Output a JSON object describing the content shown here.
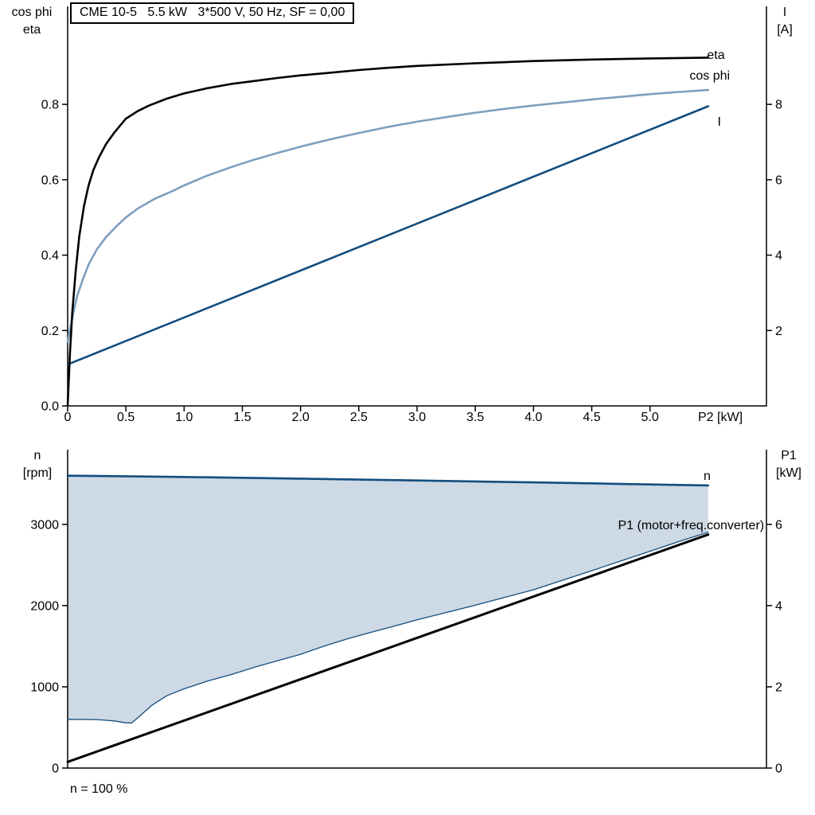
{
  "title_box": {
    "text": "CME 10-5   5.5 kW   3*500 V, 50 Hz, SF = 0,00"
  },
  "footnote": {
    "text": "n = 100 %"
  },
  "colors": {
    "eta": "#000000",
    "cos_phi": "#7e9fbe",
    "current": "#134d7d",
    "speed": "#134d7d",
    "speed_min": "#134d7d",
    "p1": "#000000",
    "band_fill": "#cdd9e5",
    "axis": "#000000"
  },
  "chart_data": [
    {
      "type": "line",
      "title": "CME 10-5   5.5 kW   3*500 V, 50 Hz, SF = 0,00",
      "xlabel": "P2 [kW]",
      "ylabel_left_lines": [
        "cos phi",
        "eta"
      ],
      "ylabel_right_lines": [
        "I",
        "[A]"
      ],
      "xlim": [
        0,
        6.0
      ],
      "xtick_values": [
        0,
        0.5,
        1.0,
        1.5,
        2.0,
        2.5,
        3.0,
        3.5,
        4.0,
        4.5,
        5.0
      ],
      "xtick_labels": [
        "0",
        "0.5",
        "1.0",
        "1.5",
        "2.0",
        "2.5",
        "3.0",
        "3.5",
        "4.0",
        "4.5",
        "5.0"
      ],
      "ylim_left": [
        0,
        1.06
      ],
      "ytick_left_values": [
        0.0,
        0.2,
        0.4,
        0.6,
        0.8
      ],
      "ytick_left_labels": [
        "0.0",
        "0.2",
        "0.4",
        "0.6",
        "0.8"
      ],
      "ylim_right": [
        0,
        10.6
      ],
      "ytick_right_values": [
        2,
        4,
        6,
        8
      ],
      "ytick_right_labels": [
        "2",
        "4",
        "6",
        "8"
      ],
      "series": [
        {
          "key": "current",
          "name": "I",
          "axis": "right",
          "color": "current",
          "width": 2.6,
          "x": [
            0,
            5.5
          ],
          "y": [
            1.1,
            7.95
          ],
          "label": {
            "text": "I",
            "x": 5.58,
            "y": 7.43,
            "anchor": "start"
          }
        },
        {
          "key": "cos-phi",
          "name": "cos phi",
          "axis": "left",
          "color": "cos_phi",
          "width": 2.6,
          "x": [
            0,
            0.04,
            0.08,
            0.13,
            0.18,
            0.25,
            0.33,
            0.42,
            0.5,
            0.6,
            0.75,
            0.9,
            1.0,
            1.2,
            1.4,
            1.6,
            1.8,
            2.0,
            2.25,
            2.5,
            2.75,
            3.0,
            3.25,
            3.5,
            3.75,
            4.0,
            4.25,
            4.5,
            4.75,
            5.0,
            5.25,
            5.5
          ],
          "y": [
            0.17,
            0.235,
            0.29,
            0.335,
            0.375,
            0.415,
            0.448,
            0.477,
            0.5,
            0.523,
            0.55,
            0.57,
            0.585,
            0.611,
            0.633,
            0.653,
            0.671,
            0.688,
            0.707,
            0.724,
            0.74,
            0.754,
            0.766,
            0.778,
            0.788,
            0.797,
            0.805,
            0.813,
            0.82,
            0.827,
            0.833,
            0.838
          ],
          "label": {
            "text": "cos phi",
            "x": 5.34,
            "y": 0.866,
            "anchor": "start"
          }
        },
        {
          "key": "eta",
          "name": "eta",
          "axis": "left",
          "color": "eta",
          "width": 2.6,
          "x": [
            0,
            0.02,
            0.04,
            0.07,
            0.1,
            0.14,
            0.18,
            0.22,
            0.27,
            0.33,
            0.4,
            0.5,
            0.6,
            0.7,
            0.85,
            1.0,
            1.2,
            1.4,
            1.6,
            1.8,
            2.0,
            2.25,
            2.5,
            2.75,
            3.0,
            3.5,
            4.0,
            4.5,
            5.0,
            5.5
          ],
          "y": [
            0,
            0.14,
            0.25,
            0.36,
            0.45,
            0.53,
            0.585,
            0.625,
            0.66,
            0.695,
            0.725,
            0.762,
            0.782,
            0.797,
            0.815,
            0.829,
            0.843,
            0.854,
            0.862,
            0.87,
            0.877,
            0.884,
            0.891,
            0.897,
            0.902,
            0.909,
            0.915,
            0.919,
            0.922,
            0.924
          ],
          "label": {
            "text": "eta",
            "x": 5.49,
            "y": 0.921,
            "anchor": "start"
          }
        }
      ]
    },
    {
      "type": "line",
      "title": "",
      "xlabel": "",
      "ylabel_left_lines": [
        "n",
        "[rpm]"
      ],
      "ylabel_right_lines": [
        "P1",
        "[kW]"
      ],
      "xlim": [
        0,
        6.0
      ],
      "xtick_values": [],
      "xtick_labels": [],
      "ylim_left": [
        0,
        3920
      ],
      "ytick_left_values": [
        0,
        1000,
        2000,
        3000
      ],
      "ytick_left_labels": [
        "0",
        "1000",
        "2000",
        "3000"
      ],
      "ylim_right": [
        0,
        7.84
      ],
      "ytick_right_values": [
        0,
        2,
        4,
        6
      ],
      "ytick_right_labels": [
        "0",
        "2",
        "4",
        "6"
      ],
      "band": {
        "upper": "speed",
        "lower": "speed-min",
        "fill": "band_fill"
      },
      "series": [
        {
          "key": "p1",
          "name": "P1 (motor+freq.converter)",
          "axis": "right",
          "color": "p1",
          "width": 3,
          "x": [
            0,
            5.5
          ],
          "y": [
            0.15,
            5.75
          ],
          "label": {
            "text": "P1 (motor+freq.converter)",
            "x": 5.98,
            "y": 5.88,
            "anchor": "end"
          }
        },
        {
          "key": "speed-min",
          "name": "",
          "axis": "left",
          "color": "speed_min",
          "width": 1.3,
          "x": [
            0,
            0.25,
            0.4,
            0.5,
            0.55,
            0.62,
            0.72,
            0.85,
            1.0,
            1.2,
            1.4,
            1.6,
            1.8,
            2.0,
            2.2,
            2.4,
            2.6,
            2.8,
            3.0,
            3.25,
            3.5,
            4.0,
            4.5,
            5.0,
            5.25,
            5.5
          ],
          "y": [
            600,
            597,
            580,
            557,
            556,
            640,
            770,
            890,
            975,
            1070,
            1150,
            1240,
            1320,
            1400,
            1500,
            1590,
            1670,
            1745,
            1825,
            1915,
            2005,
            2195,
            2430,
            2670,
            2790,
            2905
          ]
        },
        {
          "key": "speed",
          "name": "n",
          "axis": "left",
          "color": "speed",
          "width": 2.6,
          "x": [
            0,
            0.5,
            1.0,
            1.5,
            2.0,
            2.5,
            3.0,
            3.5,
            4.0,
            4.5,
            5.0,
            5.5
          ],
          "y": [
            3600,
            3593,
            3584,
            3574,
            3563,
            3552,
            3541,
            3529,
            3517,
            3505,
            3492,
            3480
          ],
          "label": {
            "text": "n",
            "x": 5.46,
            "y": 3548,
            "anchor": "start"
          }
        }
      ]
    }
  ]
}
